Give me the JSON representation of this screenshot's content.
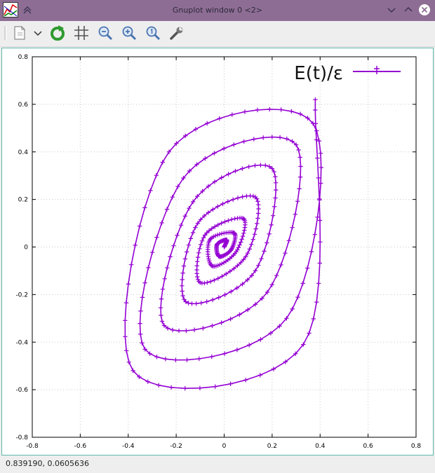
{
  "window": {
    "title": "Gnuplot window 0 <2>"
  },
  "toolbar": {
    "tools": [
      "copy-icon",
      "dropdown-arrow-icon",
      "replot-icon",
      "grid-icon",
      "zoom-out-icon",
      "zoom-in-icon",
      "zoom-fit-icon",
      "settings-wrench-icon"
    ]
  },
  "colors": {
    "titlebar": "#8e6d94",
    "series": "#9400d3",
    "grid": "#c8c8c8"
  },
  "status": {
    "coords": "0.839190, 0.0605636"
  },
  "chart_data": {
    "type": "line",
    "title": "",
    "xlabel": "",
    "ylabel": "",
    "xlim": [
      -0.8,
      0.8
    ],
    "ylim": [
      -0.8,
      0.8
    ],
    "x_ticks": [
      "-0.8",
      "-0.6",
      "-0.4",
      "-0.2",
      "0",
      "0.2",
      "0.4",
      "0.6",
      "0.8"
    ],
    "y_ticks": [
      "-0.8",
      "-0.6",
      "-0.4",
      "-0.2",
      "0",
      "0.2",
      "0.4",
      "0.6",
      "0.8"
    ],
    "grid": true,
    "legend_position": "top-right",
    "series": [
      {
        "name": "E(t)/ε",
        "marker": "plus",
        "description_of_shape": "spiral of nested tilted ellipses winding outward from the origin",
        "x": [
          0.0,
          0.01,
          -0.03,
          -0.02,
          0.03,
          0.04,
          -0.06,
          -0.05,
          0.05,
          0.08,
          -0.08,
          -0.1,
          0.09,
          0.13,
          -0.11,
          -0.16,
          0.13,
          0.2,
          -0.13,
          -0.25,
          0.18,
          0.3,
          -0.17,
          -0.33,
          0.26,
          0.37,
          -0.23,
          -0.38,
          0.33,
          0.38
        ],
        "y": [
          0.0,
          0.03,
          0.01,
          -0.04,
          -0.01,
          0.06,
          0.03,
          -0.08,
          -0.02,
          0.12,
          0.05,
          -0.15,
          -0.04,
          0.21,
          0.1,
          -0.23,
          -0.1,
          0.33,
          0.19,
          -0.33,
          -0.19,
          0.43,
          0.29,
          -0.43,
          -0.3,
          0.52,
          0.4,
          -0.52,
          -0.41,
          0.62
        ]
      }
    ]
  }
}
